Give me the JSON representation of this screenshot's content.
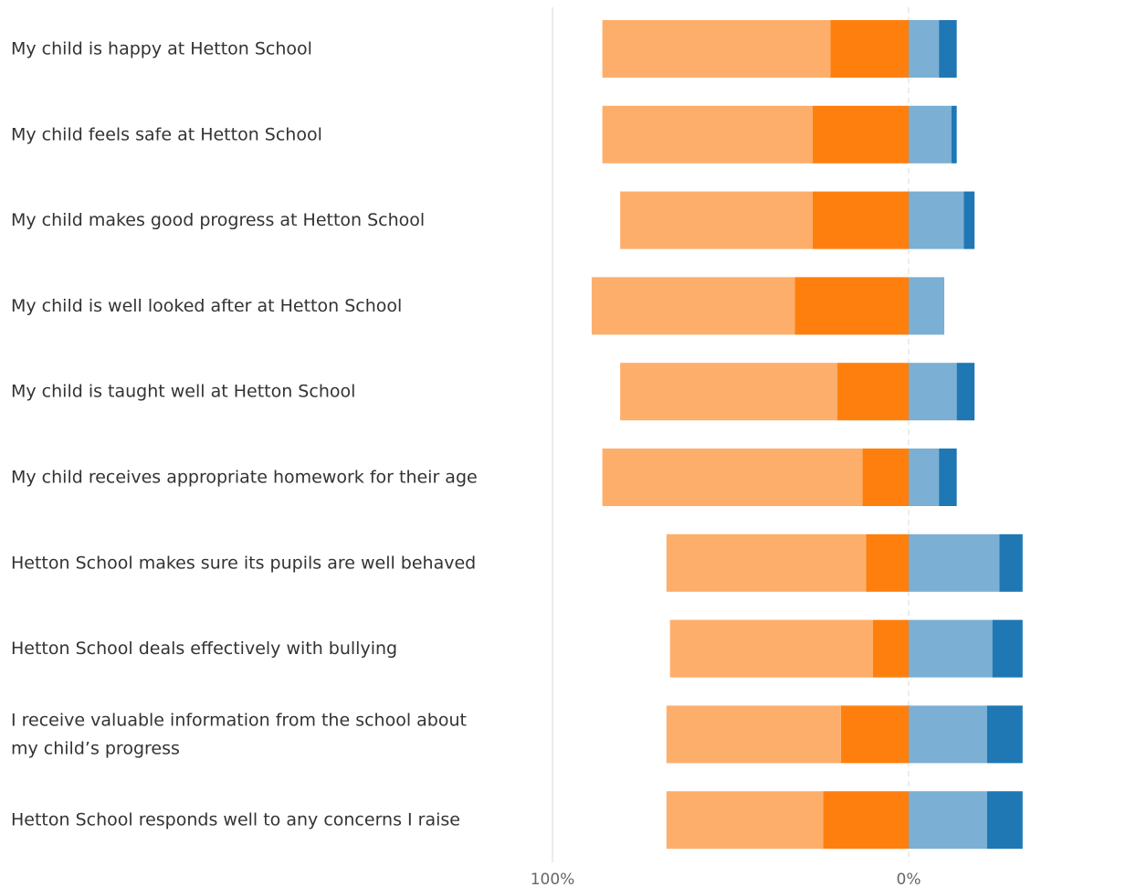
{
  "chart_data": {
    "type": "bar",
    "orientation": "horizontal",
    "stacked": "diverging",
    "categories": [
      [
        "My child is happy at Hetton School"
      ],
      [
        "My child feels safe at Hetton School"
      ],
      [
        "My child makes good progress at Hetton School"
      ],
      [
        "My child is well looked after at Hetton School"
      ],
      [
        "My child is taught well at Hetton School"
      ],
      [
        "My child receives appropriate homework for their age"
      ],
      [
        "Hetton School makes sure its pupils are well behaved"
      ],
      [
        "Hetton School deals effectively with bullying"
      ],
      [
        "I receive valuable information from the school about",
        "my child’s progress"
      ],
      [
        "Hetton School responds well to any concerns I raise"
      ]
    ],
    "series": [
      {
        "color": "#ff7f0e",
        "direction": "left",
        "values": [
          22,
          27,
          27,
          32,
          20,
          13,
          12,
          10,
          19,
          24
        ]
      },
      {
        "color": "#fdae6b",
        "direction": "left",
        "values": [
          64,
          59,
          54,
          57,
          61,
          73,
          56,
          57,
          49,
          44
        ]
      },
      {
        "color": "#7bafd4",
        "direction": "right",
        "values": [
          8.5,
          12,
          15.5,
          10,
          13.5,
          8.5,
          25.5,
          23.5,
          22,
          22
        ]
      },
      {
        "color": "#1f77b4",
        "direction": "right",
        "values": [
          5,
          1.5,
          3,
          0,
          5,
          5,
          6.5,
          8.5,
          10,
          10
        ]
      }
    ],
    "x_tick_labels": [
      "100%",
      "0%"
    ],
    "grid": false
  }
}
